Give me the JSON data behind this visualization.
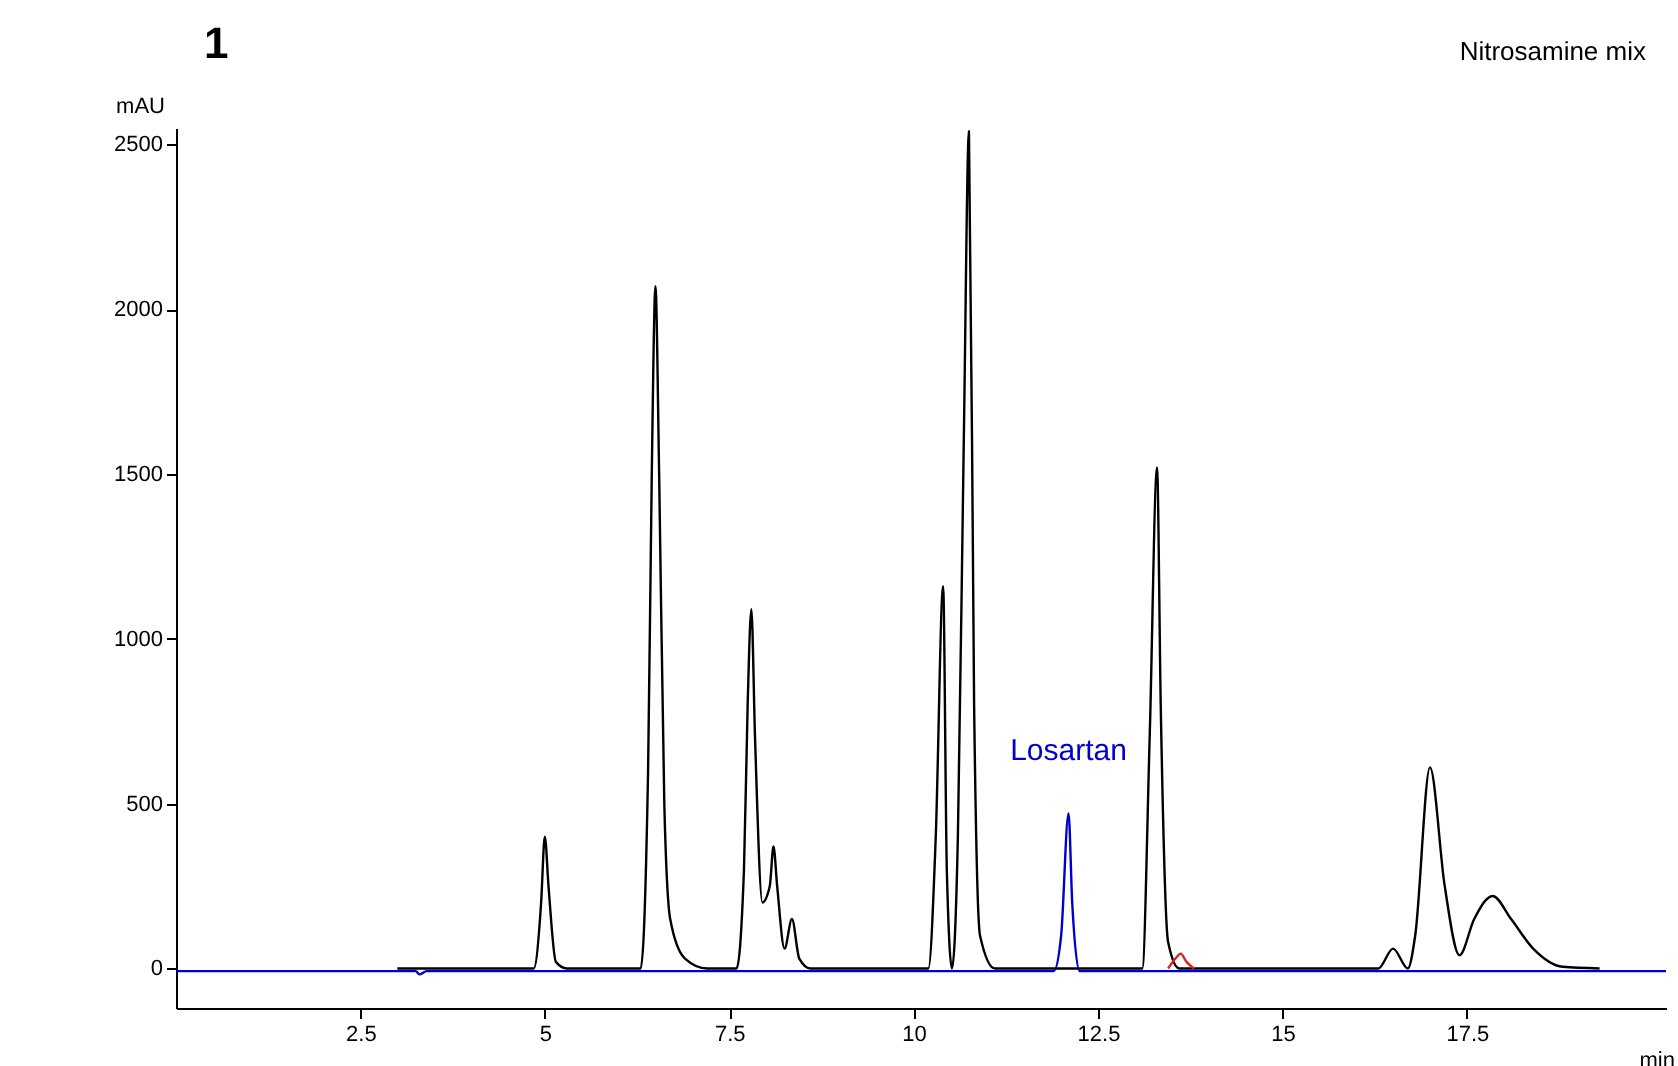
{
  "chart_data": {
    "type": "line",
    "title": "1",
    "xlabel": "min",
    "ylabel": "mAU",
    "annotations": [
      "Nitrosamine mix"
    ],
    "xlim": [
      0,
      20.2
    ],
    "ylim": [
      -120,
      2550
    ],
    "xticks": [
      2.5,
      5,
      7.5,
      10,
      12.5,
      15,
      17.5
    ],
    "yticks": [
      0,
      500,
      1000,
      1500,
      2000,
      2500
    ],
    "grid": false,
    "series": [
      {
        "color": "#000000",
        "x": [
          3,
          4.85,
          4.95,
          5.0,
          5.05,
          5.15,
          5.3,
          6.3,
          6.4,
          6.45,
          6.5,
          6.55,
          6.62,
          6.7,
          6.9,
          7.2,
          7.6,
          7.7,
          7.75,
          7.8,
          7.85,
          7.95,
          8.05,
          8.1,
          8.15,
          8.25,
          8.35,
          8.45,
          8.6,
          10.2,
          10.3,
          10.4,
          10.45,
          10.52,
          10.6,
          10.68,
          10.75,
          10.82,
          10.9,
          11.1,
          13.1,
          13.2,
          13.3,
          13.35,
          13.45,
          13.6,
          16.3,
          16.5,
          16.7,
          16.8,
          17.0,
          17.2,
          17.4,
          17.6,
          17.85,
          18.1,
          18.4,
          18.8,
          19.3
        ],
        "values": [
          0,
          0,
          200,
          400,
          250,
          20,
          0,
          0,
          600,
          1500,
          2070,
          1500,
          500,
          150,
          30,
          0,
          0,
          300,
          800,
          1090,
          700,
          200,
          250,
          370,
          250,
          60,
          150,
          30,
          0,
          0,
          400,
          1160,
          300,
          0,
          400,
          1600,
          2540,
          800,
          100,
          0,
          0,
          700,
          1520,
          800,
          80,
          0,
          0,
          60,
          0,
          100,
          610,
          250,
          40,
          150,
          220,
          150,
          60,
          5,
          0
        ]
      },
      {
        "name": "Losartan",
        "color": "#0000cc",
        "x": [
          0,
          3.25,
          3.3,
          3.4,
          11.9,
          12.0,
          12.1,
          12.15,
          12.25,
          12.4,
          20.2
        ],
        "values": [
          -8,
          -8,
          -18,
          -8,
          -8,
          100,
          470,
          200,
          -8,
          -8,
          -8
        ]
      },
      {
        "color": "#e02020",
        "x": [
          13.45,
          13.55,
          13.62,
          13.7,
          13.8
        ],
        "values": [
          0,
          30,
          45,
          20,
          0
        ]
      }
    ]
  }
}
